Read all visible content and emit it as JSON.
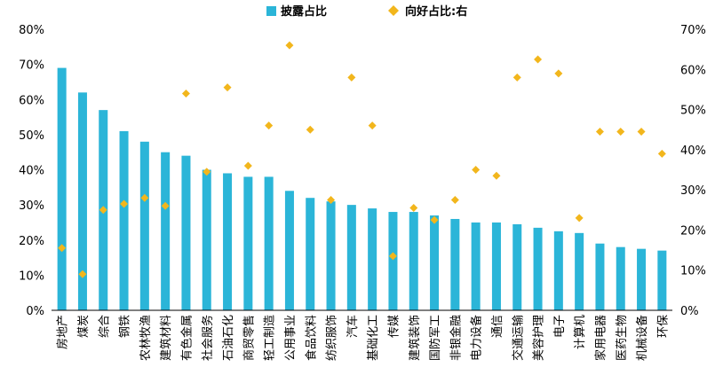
{
  "chart_data": {
    "type": "bar",
    "categories": [
      "房地产",
      "煤炭",
      "综合",
      "钢铁",
      "农林牧渔",
      "建筑材料",
      "有色金属",
      "社会服务",
      "石油石化",
      "商贸零售",
      "轻工制造",
      "公用事业",
      "食品饮料",
      "纺织服饰",
      "汽车",
      "基础化工",
      "传媒",
      "建筑装饰",
      "国防军工",
      "非银金融",
      "电力设备",
      "通信",
      "交通运输",
      "美容护理",
      "电子",
      "计算机",
      "家用电器",
      "医药生物",
      "机械设备",
      "环保"
    ],
    "series": [
      {
        "name": "披露占比",
        "type": "bar",
        "axis": "left",
        "color": "#2BB5D8",
        "values": [
          69,
          62,
          57,
          51,
          48,
          45,
          44,
          40,
          39,
          38,
          38,
          34,
          32,
          31,
          30,
          29,
          28,
          28,
          27,
          26,
          25,
          25,
          24.5,
          23.5,
          22.5,
          22,
          19,
          18,
          17.5,
          17
        ]
      },
      {
        "name": "向好占比:右",
        "type": "scatter",
        "axis": "right",
        "color": "#F2B61C",
        "values": [
          15.5,
          9,
          25,
          26.5,
          28,
          26,
          54,
          34.5,
          55.5,
          36,
          46,
          66,
          45,
          27.5,
          58,
          46,
          13.5,
          25.5,
          22.5,
          27.5,
          35,
          33.5,
          58,
          62.5,
          59,
          23,
          44.5,
          44.5,
          44.5,
          39
        ]
      }
    ],
    "y_left": {
      "min": 0,
      "max": 80,
      "step": 10,
      "tick_labels": [
        "0%",
        "10%",
        "20%",
        "30%",
        "40%",
        "50%",
        "60%",
        "70%",
        "80%"
      ]
    },
    "y_right": {
      "min": 0,
      "max": 70,
      "step": 10,
      "tick_labels": [
        "0%",
        "10%",
        "20%",
        "30%",
        "40%",
        "50%",
        "60%",
        "70%"
      ]
    },
    "legend": {
      "position": "top-center",
      "entries": [
        "披露占比",
        "向好占比:右"
      ]
    },
    "grid": false
  }
}
